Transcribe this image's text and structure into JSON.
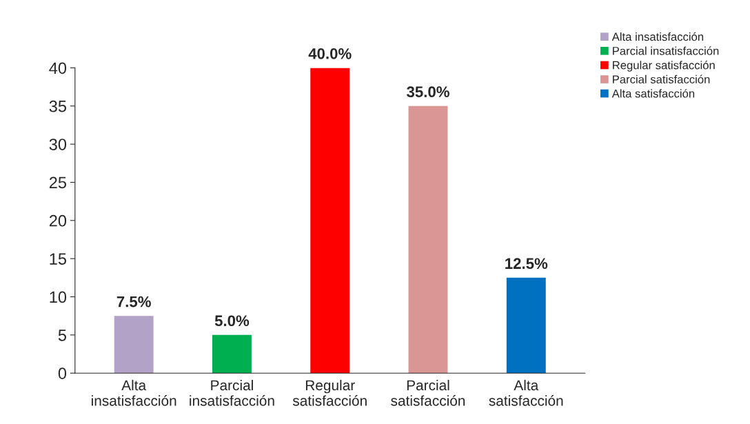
{
  "chart_data": {
    "type": "bar",
    "categories": [
      "Alta\ninsatisfacción",
      "Parcial\ninsatisfacción",
      "Regular\nsatisfacción",
      "Parcial\nsatisfacción",
      "Alta\nsatisfacción"
    ],
    "series": [
      {
        "name": "Alta insatisfacción",
        "color": "#b3a2c7",
        "values": [
          7.5,
          null,
          null,
          null,
          null
        ],
        "value_labels": [
          "7.5%",
          null,
          null,
          null,
          null
        ]
      },
      {
        "name": "Parcial insatisfacción",
        "color": "#00b050",
        "values": [
          null,
          5.0,
          null,
          null,
          null
        ],
        "value_labels": [
          null,
          "5.0%",
          null,
          null,
          null
        ]
      },
      {
        "name": "Regular satisfacción",
        "color": "#ff0000",
        "values": [
          null,
          null,
          40.0,
          null,
          null
        ],
        "value_labels": [
          null,
          null,
          "40.0%",
          null,
          null
        ]
      },
      {
        "name": "Parcial satisfacción",
        "color": "#d99694",
        "values": [
          null,
          null,
          null,
          35.0,
          null
        ],
        "value_labels": [
          null,
          null,
          null,
          "35.0%",
          null
        ]
      },
      {
        "name": "Alta satisfacción",
        "color": "#0070c0",
        "values": [
          null,
          null,
          null,
          null,
          12.5
        ],
        "value_labels": [
          null,
          null,
          null,
          null,
          "12.5%"
        ]
      }
    ],
    "ylim": [
      0,
      40
    ],
    "yticks": [
      0,
      5,
      10,
      15,
      20,
      25,
      30,
      35,
      40
    ],
    "grid": false,
    "legend": "top right"
  }
}
